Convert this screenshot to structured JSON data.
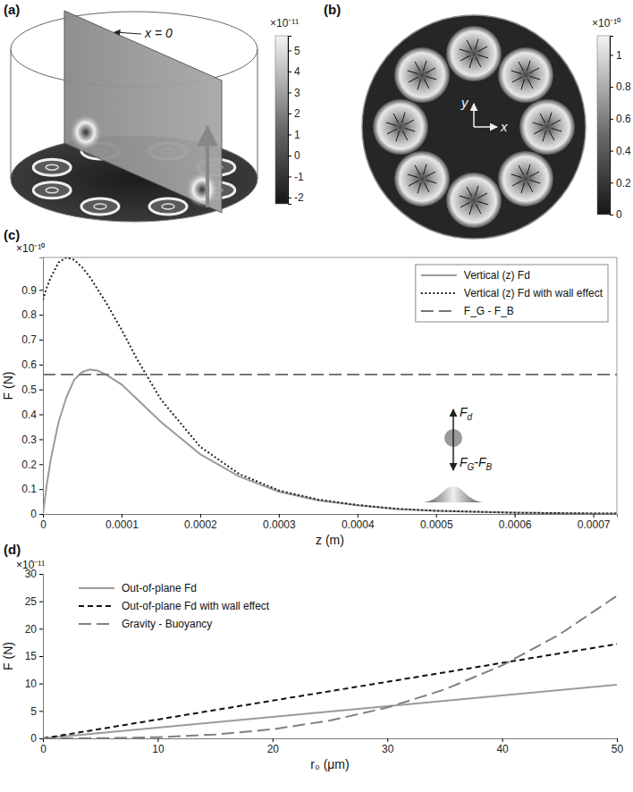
{
  "chart_data": [
    {
      "panel": "(a)",
      "type": "field_map",
      "annotations": [
        "x = 0"
      ],
      "colorbar": {
        "label": "×10⁻¹¹",
        "range": [
          -2.3,
          5.7
        ],
        "ticks": [
          -2,
          -1,
          0,
          1,
          2,
          3,
          4,
          5
        ]
      }
    },
    {
      "panel": "(b)",
      "type": "field_map",
      "xlabel": "x",
      "ylabel": "y",
      "colorbar": {
        "label": "×10⁻¹⁰",
        "range": [
          0,
          1.12
        ],
        "ticks": [
          0,
          0.2,
          0.4,
          0.6,
          0.8,
          1
        ]
      }
    },
    {
      "panel": "(c)",
      "type": "line",
      "xlabel": "z (m)",
      "ylabel": "F (N)",
      "y_scale_label": "×10⁻¹⁰",
      "xlim": [
        0,
        0.00073
      ],
      "xticks": [
        0,
        0.0001,
        0.0002,
        0.0003,
        0.0004,
        0.0005,
        0.0006,
        0.0007
      ],
      "ylim": [
        0,
        1.03
      ],
      "yticks": [
        0,
        0.1,
        0.2,
        0.3,
        0.4,
        0.5,
        0.6,
        0.7,
        0.8,
        0.9
      ],
      "legend": "upper right",
      "grid": false,
      "x": [
        0,
        5e-06,
        1e-05,
        2e-05,
        3e-05,
        4e-05,
        5e-05,
        6e-05,
        7e-05,
        8e-05,
        0.0001,
        0.00012,
        0.00015,
        0.0002,
        0.00025,
        0.0003,
        0.00035,
        0.0004,
        0.00045,
        0.0005,
        0.0006,
        0.0007,
        0.00073
      ],
      "series": [
        {
          "name": "Vertical (z) Fd",
          "color": "#9a9a9a",
          "line_style": "solid",
          "values": [
            0,
            0.12,
            0.22,
            0.37,
            0.47,
            0.54,
            0.57,
            0.58,
            0.575,
            0.56,
            0.52,
            0.46,
            0.37,
            0.24,
            0.15,
            0.09,
            0.055,
            0.035,
            0.02,
            0.013,
            0.005,
            0.002,
            0.0015
          ]
        },
        {
          "name": "Vertical (z) Fd with wall effect",
          "color": "#222222",
          "line_style": "dotted",
          "values": [
            0.86,
            0.91,
            0.95,
            1.01,
            1.03,
            1.02,
            0.99,
            0.95,
            0.9,
            0.85,
            0.74,
            0.62,
            0.46,
            0.27,
            0.16,
            0.095,
            0.058,
            0.036,
            0.021,
            0.013,
            0.005,
            0.002,
            0.0015
          ]
        },
        {
          "name": "F_G - F_B",
          "color": "#777777",
          "line_style": "long_dash",
          "values": [
            0.56,
            0.56,
            0.56,
            0.56,
            0.56,
            0.56,
            0.56,
            0.56,
            0.56,
            0.56,
            0.56,
            0.56,
            0.56,
            0.56,
            0.56,
            0.56,
            0.56,
            0.56,
            0.56,
            0.56,
            0.56,
            0.56,
            0.56
          ]
        }
      ],
      "annotations": [
        {
          "parts": [
            "F",
            "d"
          ]
        },
        {
          "parts": [
            "F",
            "G",
            "-F",
            "B"
          ]
        }
      ]
    },
    {
      "panel": "(d)",
      "type": "line",
      "xlabel": "r₀ (μm)",
      "ylabel": "F (N)",
      "y_scale_label": "×10⁻¹¹",
      "xlim": [
        0,
        50
      ],
      "xticks": [
        0,
        10,
        20,
        30,
        40,
        50
      ],
      "ylim": [
        0,
        30
      ],
      "yticks": [
        0,
        5,
        10,
        15,
        20,
        25,
        30
      ],
      "legend": "upper left",
      "grid": false,
      "x": [
        0,
        5,
        10,
        15,
        20,
        25,
        30,
        35,
        40,
        45,
        50
      ],
      "series": [
        {
          "name": "Out-of-plane  Fd",
          "color": "#9a9a9a",
          "line_style": "solid",
          "values": [
            0,
            0.98,
            1.96,
            2.94,
            3.92,
            4.9,
            5.88,
            6.86,
            7.84,
            8.82,
            9.8
          ]
        },
        {
          "name": "Out-of-plane  Fd with wall effect",
          "color": "#111111",
          "line_style": "dashed",
          "values": [
            0,
            1.72,
            3.44,
            5.16,
            6.88,
            8.6,
            10.32,
            12.04,
            13.76,
            15.48,
            17.2
          ]
        },
        {
          "name": "Gravity - Buoyancy",
          "color": "#808080",
          "line_style": "long_dash",
          "values": [
            0,
            0.03,
            0.21,
            0.7,
            1.66,
            3.25,
            5.62,
            8.92,
            13.31,
            18.95,
            26
          ]
        }
      ]
    }
  ]
}
